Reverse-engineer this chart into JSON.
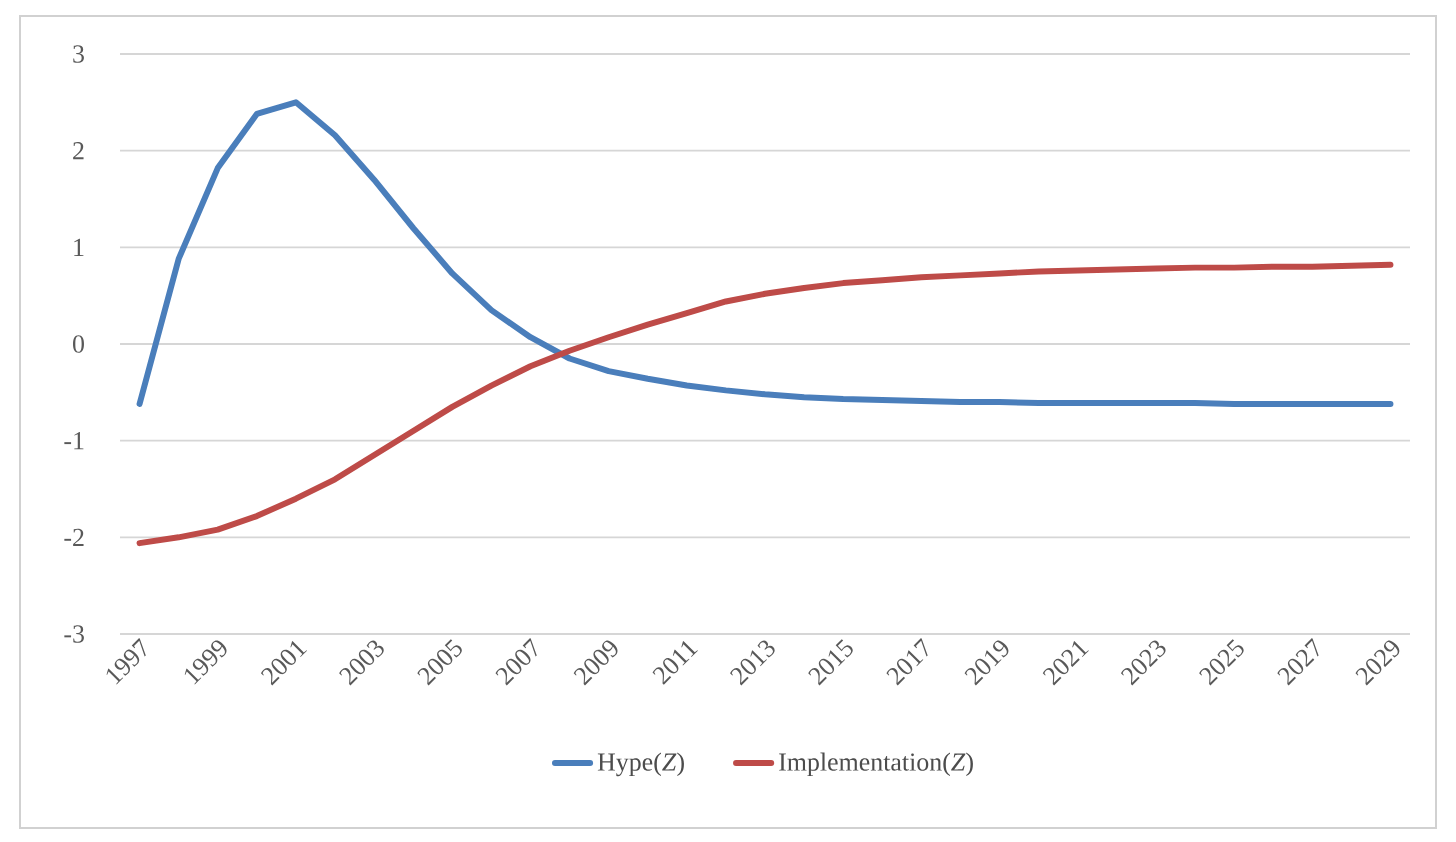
{
  "chart_data": {
    "type": "line",
    "x": [
      1997,
      1998,
      1999,
      2000,
      2001,
      2002,
      2003,
      2004,
      2005,
      2006,
      2007,
      2008,
      2009,
      2010,
      2011,
      2012,
      2013,
      2014,
      2015,
      2016,
      2017,
      2018,
      2019,
      2020,
      2021,
      2022,
      2023,
      2024,
      2025,
      2026,
      2027,
      2028,
      2029
    ],
    "series": [
      {
        "name": "Hype(*Z*)",
        "color": "#4a7ebb",
        "values": [
          -0.62,
          0.88,
          1.82,
          2.38,
          2.5,
          2.16,
          1.7,
          1.2,
          0.73,
          0.35,
          0.07,
          -0.15,
          -0.28,
          -0.36,
          -0.43,
          -0.48,
          -0.52,
          -0.55,
          -0.57,
          -0.58,
          -0.59,
          -0.6,
          -0.6,
          -0.61,
          -0.61,
          -0.61,
          -0.61,
          -0.61,
          -0.62,
          -0.62,
          -0.62,
          -0.62,
          -0.62
        ]
      },
      {
        "name": "Implementation(*Z*)",
        "color": "#be4b48",
        "values": [
          -2.06,
          -2.0,
          -1.92,
          -1.78,
          -1.6,
          -1.4,
          -1.15,
          -0.9,
          -0.65,
          -0.43,
          -0.23,
          -0.07,
          0.07,
          0.2,
          0.32,
          0.44,
          0.52,
          0.58,
          0.63,
          0.66,
          0.69,
          0.71,
          0.73,
          0.75,
          0.76,
          0.77,
          0.78,
          0.79,
          0.79,
          0.8,
          0.8,
          0.81,
          0.82
        ]
      }
    ],
    "xlim": [
      1996.5,
      2029.5
    ],
    "xticks": [
      1997,
      1999,
      2001,
      2003,
      2005,
      2007,
      2009,
      2011,
      2013,
      2015,
      2017,
      2019,
      2021,
      2023,
      2025,
      2027,
      2029
    ],
    "ylim": [
      -3,
      3
    ],
    "yticks": [
      -3,
      -2,
      -1,
      0,
      1,
      2,
      3
    ],
    "grid": "y",
    "legend": "bottom",
    "marker": "none",
    "line_style": "solid"
  }
}
